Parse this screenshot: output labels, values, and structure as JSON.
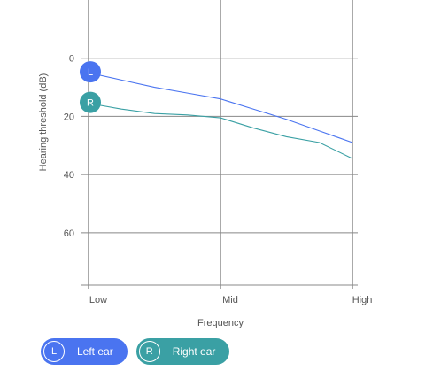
{
  "chart_data": {
    "type": "line",
    "xlabel": "Frequency",
    "ylabel": "Hearing threshold (dB)",
    "x": [
      0,
      1,
      2,
      3,
      4,
      5,
      6,
      7,
      8
    ],
    "x_ticks": [
      {
        "x": 0,
        "label": "Low"
      },
      {
        "x": 4,
        "label": "Mid"
      },
      {
        "x": 8,
        "label": "High"
      }
    ],
    "xlim": [
      0,
      8
    ],
    "y_ticks": [
      0,
      20,
      40,
      60
    ],
    "ylim": [
      -20,
      78
    ],
    "y_inverted": true,
    "grid": true,
    "legend_position": "bottom-left",
    "series": [
      {
        "name": "Left ear",
        "marker": "L",
        "color": "#4a74f0",
        "values": [
          5,
          7.5,
          10,
          12,
          14,
          17.5,
          21,
          25,
          29
        ]
      },
      {
        "name": "Right ear",
        "marker": "R",
        "color": "#3aa0a4",
        "values": [
          15.5,
          17.5,
          19,
          19.5,
          20.5,
          24,
          27,
          29,
          34.5
        ]
      }
    ]
  }
}
